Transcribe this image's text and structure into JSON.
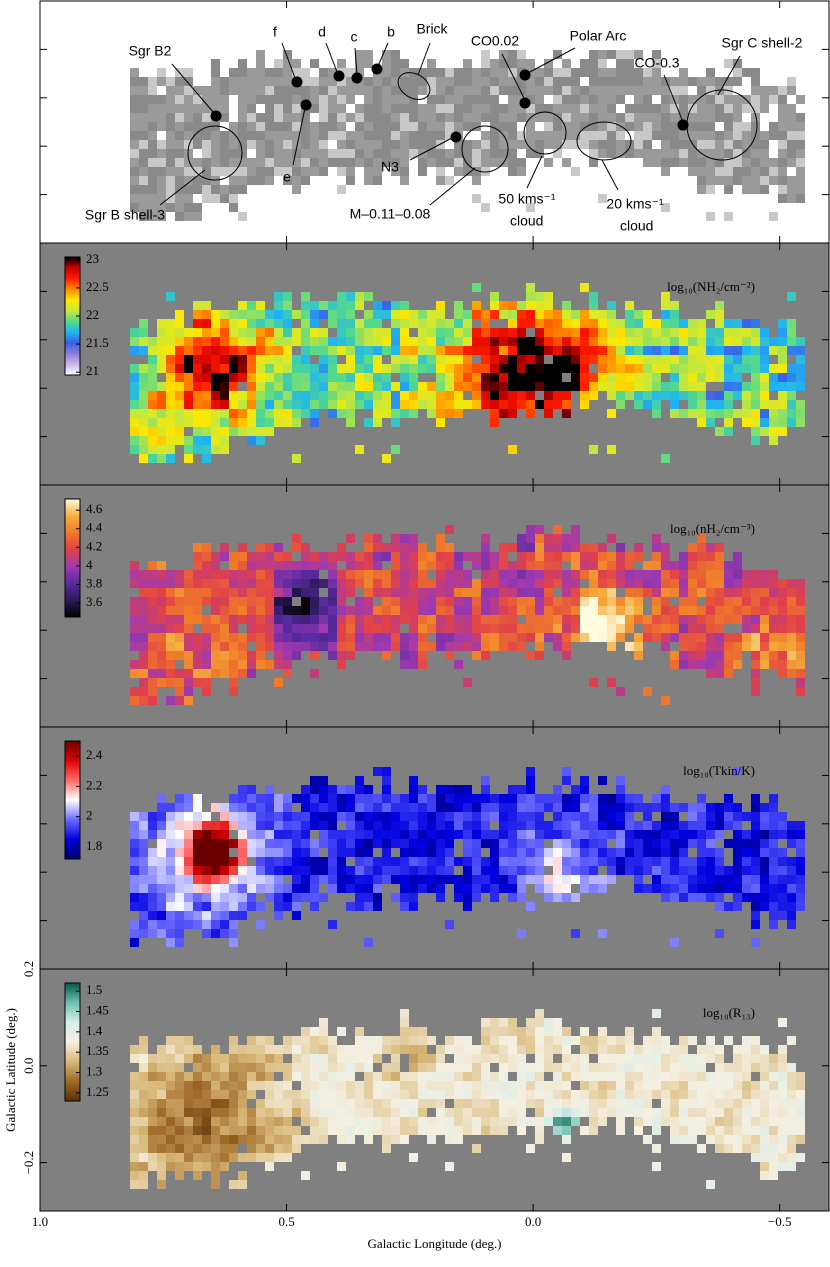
{
  "chart_data": [
    {
      "type": "contour",
      "color": "#9a9a9a",
      "xlim": [
        1.0,
        -0.6
      ],
      "ylim": [
        -0.3,
        0.2
      ],
      "xticks": [
        1,
        0.5,
        0,
        -0.5
      ],
      "yticks": [
        0.1,
        0,
        -0.1,
        -0.2
      ],
      "annotations": [
        "Sgr B2",
        "f",
        "d",
        "c",
        "b",
        "Brick",
        "CO0.02",
        "Polar Arc",
        "Sgr C shell-2",
        "CO-0.3",
        "N3",
        "e",
        "Sgr B shell-3",
        "M–0.11–0.08",
        "50 kms⁻¹",
        "cloud",
        "20 kms⁻¹",
        "cloud"
      ]
    },
    {
      "type": "image",
      "xlim": [
        1.0,
        -0.6
      ],
      "ylim": [
        -0.3,
        0.2
      ],
      "xticks": [
        1,
        0.5,
        0,
        -0.5
      ],
      "yticks": [
        0.1,
        0,
        -0.1,
        -0.2
      ],
      "colorbar": {
        "label": "log₁₀(NH₂/cm⁻²)",
        "clim": [
          20.95,
          23.05
        ],
        "ticks": [
          21,
          21.5,
          22,
          22.5,
          23
        ],
        "colors": [
          "#ffffff",
          "#c9b6e6",
          "#8a7fd6",
          "#3a5fe6",
          "#1fb5f2",
          "#56d98a",
          "#c8e83a",
          "#ffe800",
          "#ff8a00",
          "#ff1a00",
          "#c80000",
          "#000000"
        ]
      }
    },
    {
      "type": "image",
      "xlim": [
        1.0,
        -0.6
      ],
      "ylim": [
        -0.3,
        0.2
      ],
      "xticks": [
        1,
        0.5,
        0,
        -0.5
      ],
      "yticks": [
        0.1,
        0,
        -0.1,
        -0.2
      ],
      "colorbar": {
        "label": "log₁₀(nH₂/cm⁻³)",
        "clim": [
          3.45,
          4.72
        ],
        "ticks": [
          3.6,
          3.8,
          4,
          4.2,
          4.4,
          4.6
        ],
        "colors": [
          "#000000",
          "#2a1a5a",
          "#5a2aa0",
          "#a03ab0",
          "#e0404a",
          "#f07a2a",
          "#f5b040",
          "#fffbe0"
        ]
      }
    },
    {
      "type": "image",
      "xlim": [
        1.0,
        -0.6
      ],
      "ylim": [
        -0.3,
        0.2
      ],
      "xticks": [
        1,
        0.5,
        0,
        -0.5
      ],
      "yticks": [
        0.1,
        0,
        -0.1,
        -0.2
      ],
      "colorbar": {
        "label": "log₁₀(Tkin/K)",
        "clim": [
          1.72,
          2.5
        ],
        "ticks": [
          1.8,
          2,
          2.2,
          2.4
        ],
        "colors": [
          "#00006a",
          "#0000e0",
          "#6a6aff",
          "#ffffff",
          "#ff6a6a",
          "#e00000",
          "#6a0000"
        ]
      }
    },
    {
      "type": "image",
      "xlim": [
        1.0,
        -0.6
      ],
      "ylim": [
        -0.3,
        0.2
      ],
      "xticks": [
        {
          "value": 1,
          "label": "1.0"
        },
        0.5,
        {
          "value": 0,
          "label": "0.0"
        },
        {
          "value": -0.5,
          "label": "−0.5"
        }
      ],
      "yticks": [
        0.2,
        {
          "value": 0,
          "label": "0.0"
        },
        {
          "value": -0.2,
          "label": "−0.2"
        }
      ],
      "xlabel": "Galactic Longitude (deg.)",
      "ylabel": "Galactic Latitude (deg.)",
      "colorbar": {
        "label": "log₁₀(R₁₃)",
        "clim": [
          1.23,
          1.52
        ],
        "ticks": [
          1.25,
          1.3,
          1.35,
          1.4,
          1.45,
          1.5
        ],
        "colors": [
          "#5a3008",
          "#a06a28",
          "#d8b878",
          "#f5efe0",
          "#d5eeea",
          "#70c0b0",
          "#005a4a"
        ]
      }
    }
  ]
}
